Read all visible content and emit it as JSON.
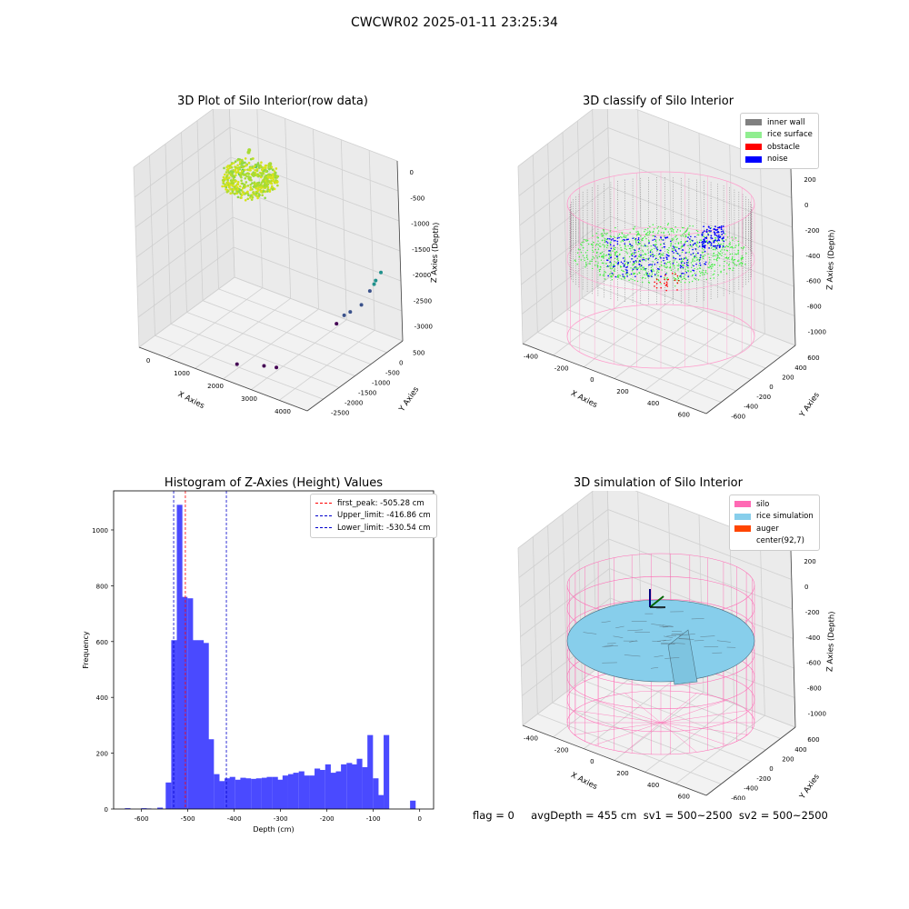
{
  "figure": {
    "suptitle": "CWCWR02 2025-01-11 23:25:34",
    "status_line": "flag = 0     avgDepth = 455 cm  sv1 = 500~2500  sv2 = 500~2500"
  },
  "colors": {
    "inner_wall": "#808080",
    "rice_surface": "#90ee90",
    "obstacle": "#ff0000",
    "noise": "#0000ff",
    "histogram_bar": "#4a4aff",
    "peak_line": "#ff0000",
    "limit_line": "#0000cc",
    "silo": "#ff69b4",
    "rice_simulation": "#87ceeb",
    "auger": "#ff4500"
  },
  "chart_data": [
    {
      "type": "scatter",
      "id": "raw",
      "title": "3D Plot of Silo Interior(row data)",
      "xlabel": "X Axies",
      "ylabel": "Y Axies",
      "zlabel": "Z Axies (Depth)",
      "xticks": [
        "0",
        "1000",
        "2000",
        "3000",
        "4000"
      ],
      "yticks": [
        "500",
        "0",
        "-500",
        "-1000",
        "-1500",
        "-2000",
        "-2500"
      ],
      "zticks": [
        "0",
        "-500",
        "-1000",
        "-1500",
        "-2000",
        "-2500",
        "-3000"
      ],
      "xlim": [
        -700,
        4100
      ],
      "ylim": [
        -2800,
        800
      ],
      "zlim": [
        -3100,
        100
      ],
      "colormap": "viridis",
      "outlier_points": [
        {
          "x": 1800,
          "y": -2400,
          "z": -2950
        },
        {
          "x": 2500,
          "y": -2300,
          "z": -2850
        },
        {
          "x": 2700,
          "y": -2100,
          "z": -2900
        },
        {
          "x": 3300,
          "y": -600,
          "z": -2500
        },
        {
          "x": 3450,
          "y": -500,
          "z": -2350
        },
        {
          "x": 3550,
          "y": -400,
          "z": -2300
        },
        {
          "x": 3800,
          "y": -300,
          "z": -2150
        },
        {
          "x": 3900,
          "y": -100,
          "z": -1950
        },
        {
          "x": 3950,
          "y": 0,
          "z": -1850
        },
        {
          "x": 3960,
          "y": 50,
          "z": -1800
        },
        {
          "x": 4000,
          "y": 200,
          "z": -1700
        },
        {
          "x": -300,
          "y": 600,
          "z": -1100
        },
        {
          "x": -250,
          "y": 650,
          "z": -1050
        },
        {
          "x": -150,
          "y": 500,
          "z": -900
        },
        {
          "x": -100,
          "y": 450,
          "z": -800
        },
        {
          "x": 50,
          "y": 500,
          "z": -600
        },
        {
          "x": 150,
          "y": 400,
          "z": -500
        },
        {
          "x": 400,
          "y": 300,
          "z": -700
        },
        {
          "x": 700,
          "y": 200,
          "z": -950
        },
        {
          "x": 800,
          "y": 100,
          "z": -900
        },
        {
          "x": 900,
          "y": 200,
          "z": -500
        }
      ]
    },
    {
      "type": "scatter",
      "id": "classify",
      "title": "3D classify of Silo Interior",
      "xlabel": "X Axies",
      "ylabel": "Y Axies",
      "zlabel": "Z Axies (Depth)",
      "xticks": [
        "-400",
        "-200",
        "0",
        "200",
        "400",
        "600"
      ],
      "yticks": [
        "600",
        "400",
        "200",
        "0",
        "-200",
        "-400",
        "-600"
      ],
      "zticks": [
        "200",
        "0",
        "-200",
        "-400",
        "-600",
        "-800",
        "-1000"
      ],
      "xlim": [
        -500,
        700
      ],
      "ylim": [
        -650,
        650
      ],
      "zlim": [
        -1000,
        250
      ],
      "legend": [
        "inner wall",
        "rice surface",
        "obstacle",
        "noise"
      ],
      "silo_radius": 500,
      "silo_top": 70,
      "silo_bottom": -1000
    },
    {
      "type": "bar",
      "id": "histogram",
      "title": "Histogram of Z-Axies (Height) Values",
      "xlabel": "Depth (cm)",
      "ylabel": "Frequency",
      "xlim": [
        -660,
        30
      ],
      "ylim": [
        0,
        1140
      ],
      "xticks": [
        -600,
        -500,
        -400,
        -300,
        -200,
        -100,
        0
      ],
      "yticks": [
        0,
        200,
        400,
        600,
        800,
        1000
      ],
      "bin_width": 11.44,
      "bins": [
        {
          "x": -630,
          "count": 3
        },
        {
          "x": -595,
          "count": 3
        },
        {
          "x": -585,
          "count": 2
        },
        {
          "x": -560,
          "count": 5
        },
        {
          "x": -542,
          "count": 95
        },
        {
          "x": -530,
          "count": 605
        },
        {
          "x": -518,
          "count": 1090
        },
        {
          "x": -507,
          "count": 760
        },
        {
          "x": -495,
          "count": 755
        },
        {
          "x": -484,
          "count": 605
        },
        {
          "x": -472,
          "count": 605
        },
        {
          "x": -461,
          "count": 595
        },
        {
          "x": -450,
          "count": 250
        },
        {
          "x": -438,
          "count": 125
        },
        {
          "x": -427,
          "count": 100
        },
        {
          "x": -415,
          "count": 110
        },
        {
          "x": -404,
          "count": 115
        },
        {
          "x": -392,
          "count": 105
        },
        {
          "x": -381,
          "count": 112
        },
        {
          "x": -370,
          "count": 110
        },
        {
          "x": -358,
          "count": 108
        },
        {
          "x": -347,
          "count": 110
        },
        {
          "x": -335,
          "count": 112
        },
        {
          "x": -324,
          "count": 115
        },
        {
          "x": -312,
          "count": 115
        },
        {
          "x": -301,
          "count": 105
        },
        {
          "x": -290,
          "count": 120
        },
        {
          "x": -278,
          "count": 125
        },
        {
          "x": -267,
          "count": 130
        },
        {
          "x": -255,
          "count": 135
        },
        {
          "x": -244,
          "count": 120
        },
        {
          "x": -232,
          "count": 120
        },
        {
          "x": -221,
          "count": 145
        },
        {
          "x": -210,
          "count": 140
        },
        {
          "x": -198,
          "count": 160
        },
        {
          "x": -187,
          "count": 130
        },
        {
          "x": -175,
          "count": 135
        },
        {
          "x": -164,
          "count": 160
        },
        {
          "x": -152,
          "count": 165
        },
        {
          "x": -141,
          "count": 160
        },
        {
          "x": -130,
          "count": 180
        },
        {
          "x": -118,
          "count": 150
        },
        {
          "x": -107,
          "count": 265
        },
        {
          "x": -95,
          "count": 110
        },
        {
          "x": -84,
          "count": 50
        },
        {
          "x": -72,
          "count": 265
        },
        {
          "x": -61,
          "count": 0
        },
        {
          "x": -49,
          "count": 0
        },
        {
          "x": -38,
          "count": 0
        },
        {
          "x": -26,
          "count": 0
        },
        {
          "x": -15,
          "count": 30
        }
      ],
      "vlines": [
        {
          "label": "first_peak: -505.28 cm",
          "x": -505.28,
          "color_key": "peak_line"
        },
        {
          "label": "Upper_limit: -416.86 cm",
          "x": -416.86,
          "color_key": "limit_line"
        },
        {
          "label": "Lower_limit: -530.54 cm",
          "x": -530.54,
          "color_key": "limit_line"
        }
      ]
    },
    {
      "type": "surface",
      "id": "simulation",
      "title": "3D simulation of Silo Interior",
      "xlabel": "X Axies",
      "ylabel": "Y Axies",
      "zlabel": "Z Axies (Depth)",
      "xticks": [
        "-400",
        "-200",
        "0",
        "200",
        "400",
        "600"
      ],
      "yticks": [
        "600",
        "400",
        "200",
        "0",
        "-200",
        "-400",
        "-600"
      ],
      "zticks": [
        "200",
        "0",
        "-200",
        "-400",
        "-600",
        "-800",
        "-1000"
      ],
      "xlim": [
        -500,
        700
      ],
      "ylim": [
        -650,
        650
      ],
      "zlim": [
        -1000,
        250
      ],
      "legend": [
        "silo",
        "rice simulation",
        "auger",
        "center(92,7)"
      ],
      "center": [
        92,
        7
      ],
      "avg_depth": 455,
      "silo_radius": 500,
      "silo_top": 70,
      "silo_bottom": -1000
    }
  ]
}
